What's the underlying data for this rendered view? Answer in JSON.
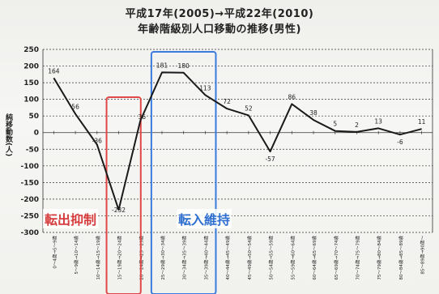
{
  "title_line1": "平成17年(2005)→平成22年(2010)",
  "title_line2": "年齢階級別人口移動の推移(男性)",
  "annotations": {
    "suppress": "転出抑制",
    "maintain": "転入維持"
  },
  "colors": {
    "line": "#1a1a1a",
    "suppress_box": "#e04848",
    "maintain_box": "#3a7be0"
  },
  "chart_data": {
    "type": "line",
    "title": "平成17年(2005)→平成22年(2010) 年齢階級別人口移動の推移(男性)",
    "ylabel": "純移動数(人)",
    "ylim": [
      -300,
      250
    ],
    "yticks": [
      250,
      200,
      150,
      100,
      50,
      0,
      -50,
      -100,
      -150,
      -200,
      -250,
      -300
    ],
    "grid": true,
    "categories": [
      "0〜4歳→5〜9歳",
      "5〜9歳→10〜14歳",
      "10〜14歳→15〜19歳",
      "15〜19歳→20〜24歳",
      "20〜24歳→25〜29歳",
      "25〜29歳→30〜34歳",
      "30〜34歳→35〜39歳",
      "35〜39歳→40〜44歳",
      "40〜44歳→45〜49歳",
      "45〜49歳→50〜54歳",
      "50〜54歳→55〜59歳",
      "55〜59歳→60〜64歳",
      "60〜64歳→65〜69歳",
      "65〜69歳→70〜74歳",
      "70〜74歳→75〜79歳",
      "75〜79歳→80〜84歳",
      "80〜84歳→85〜89歳",
      "85〜89歳→90歳〜"
    ],
    "values": [
      164,
      56,
      -36,
      -232,
      36,
      181,
      180,
      113,
      72,
      52,
      -57,
      86,
      38,
      5,
      2,
      13,
      -6,
      11
    ],
    "data_labels": [
      "164",
      "56",
      "-36",
      "-232",
      "36",
      "181",
      "180",
      "113",
      "72",
      "52",
      "-57",
      "86",
      "38",
      "5",
      "2",
      "13",
      "-6",
      "11"
    ]
  }
}
